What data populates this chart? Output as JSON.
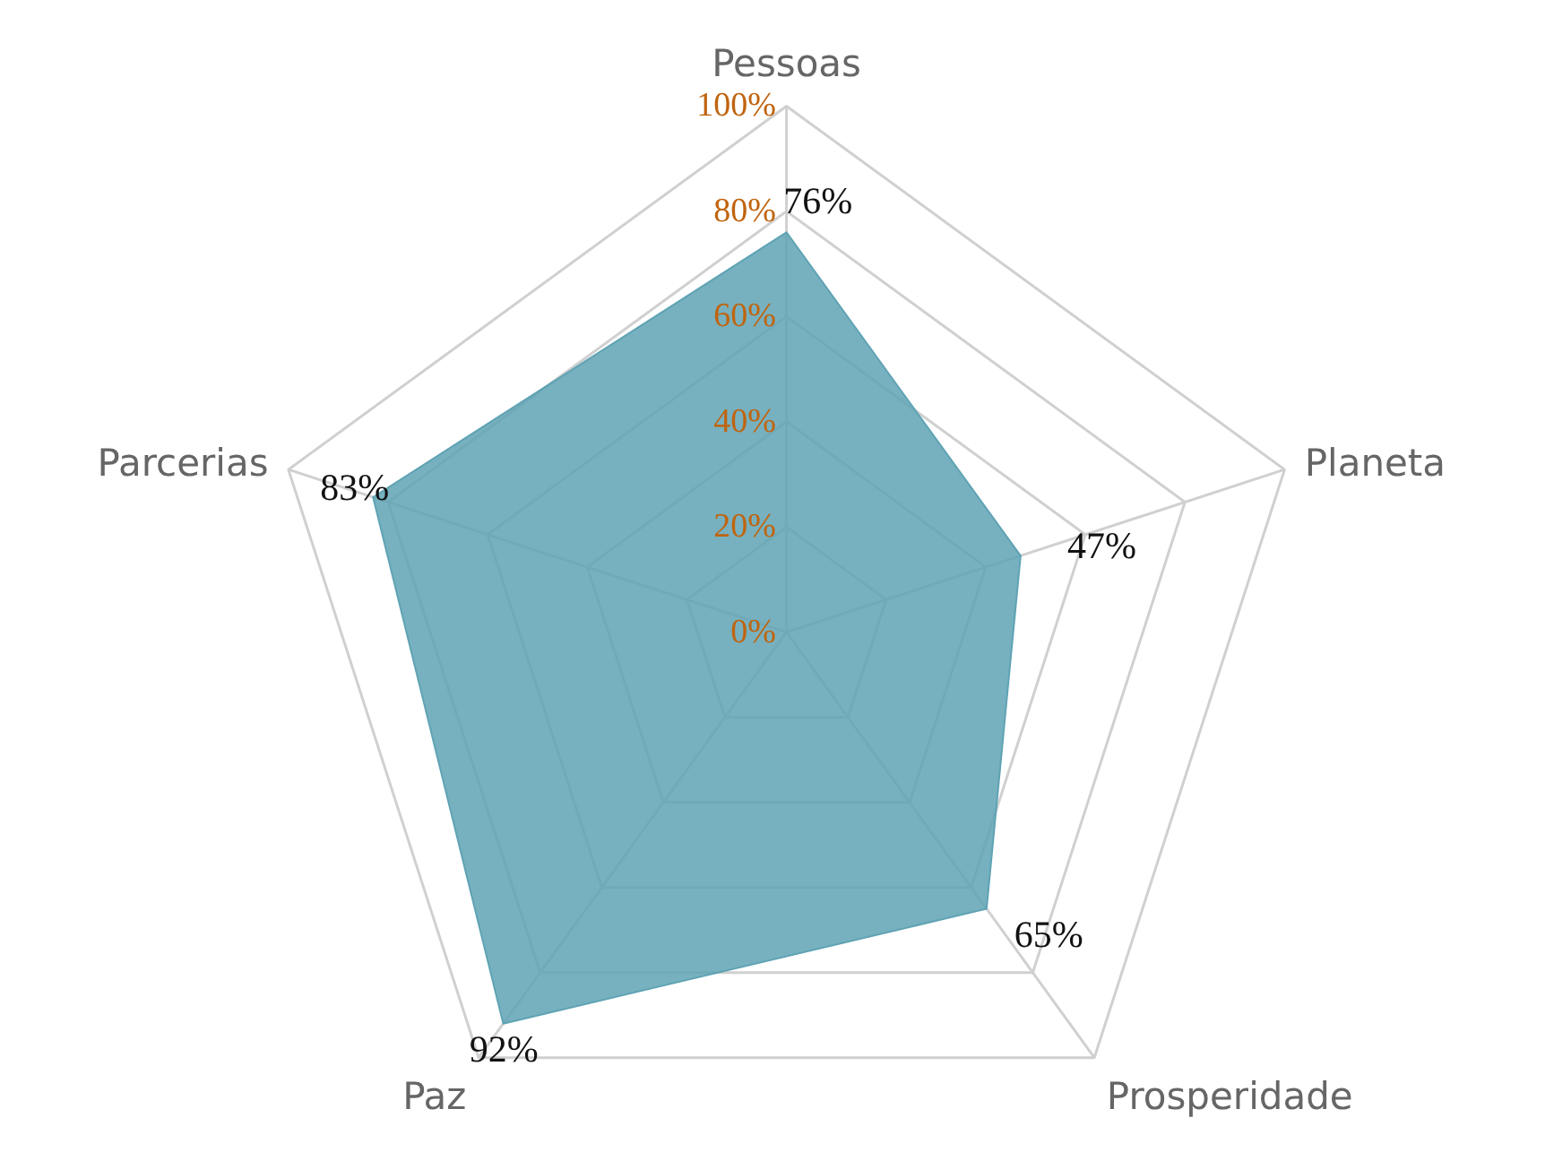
{
  "chart_data": {
    "type": "radar",
    "categories": [
      "Pessoas",
      "Planeta",
      "Prosperidade",
      "Paz",
      "Parcerias"
    ],
    "series": [
      {
        "color": "#5fa3b4",
        "values": [
          76,
          47,
          65,
          92,
          83
        ],
        "value_labels": [
          "76%",
          "47%",
          "65%",
          "92%",
          "83%"
        ]
      }
    ],
    "ylim": [
      0,
      100
    ],
    "yticks": [
      {
        "value": 0,
        "label": "0%"
      },
      {
        "value": 20,
        "label": "20%"
      },
      {
        "value": 40,
        "label": "40%"
      },
      {
        "value": 60,
        "label": "60%"
      },
      {
        "value": 80,
        "label": "80%"
      },
      {
        "value": 100,
        "label": "100%"
      }
    ],
    "grid": true
  }
}
